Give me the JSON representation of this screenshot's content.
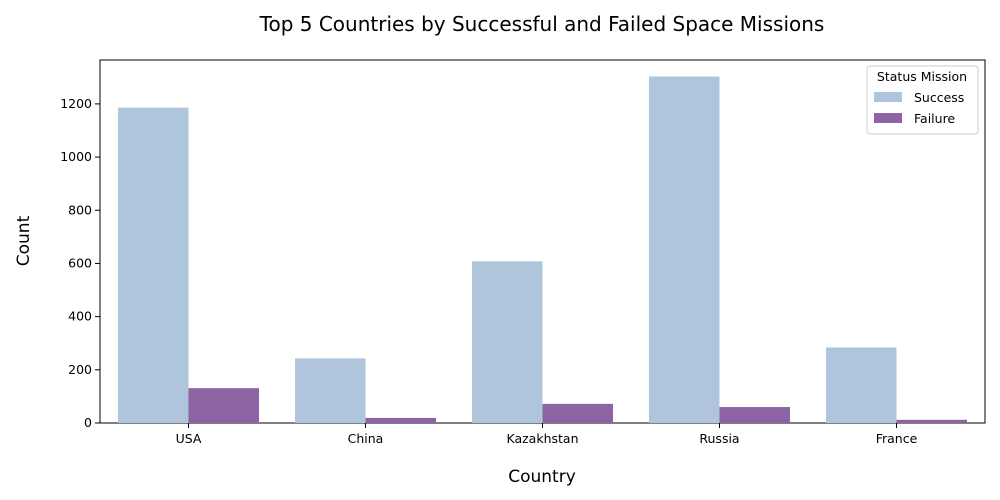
{
  "chart_data": {
    "type": "bar",
    "title": "Top 5 Countries by Successful and Failed Space Missions",
    "xlabel": "Country",
    "ylabel": "Count",
    "categories": [
      "USA",
      "China",
      "Kazakhstan",
      "Russia",
      "France"
    ],
    "series": [
      {
        "name": "Success",
        "values": [
          1186,
          243,
          608,
          1303,
          284
        ],
        "color": "#afc5dc"
      },
      {
        "name": "Failure",
        "values": [
          131,
          19,
          72,
          60,
          12
        ],
        "color": "#8c64a4"
      }
    ],
    "ylim": [
      0,
      1365
    ],
    "yticks": [
      0,
      200,
      400,
      600,
      800,
      1000,
      1200
    ],
    "grid": false,
    "legend": {
      "title": "Status Mission",
      "placement": "top-right"
    }
  }
}
